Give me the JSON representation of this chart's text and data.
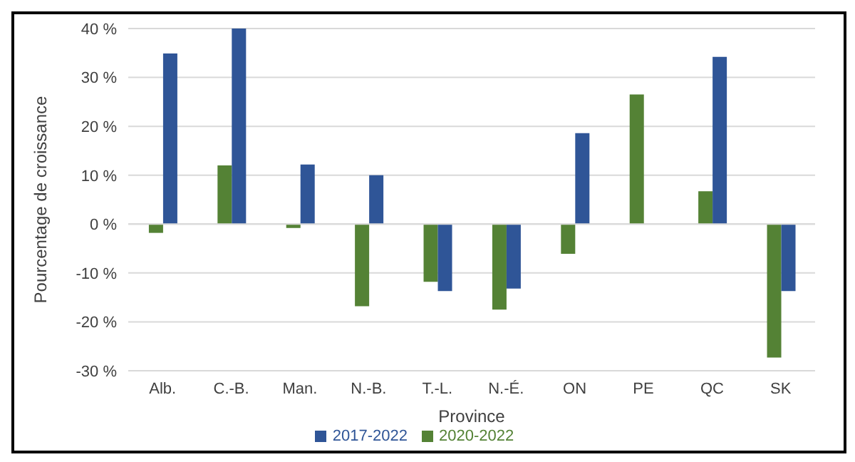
{
  "chart_data": {
    "type": "bar",
    "xlabel": "Province",
    "ylabel": "Pourcentage de croissance",
    "categories": [
      "Alb.",
      "C.-B.",
      "Man.",
      "N.-B.",
      "T.-L.",
      "N.-É.",
      "ON",
      "PE",
      "QC",
      "SK"
    ],
    "series": [
      {
        "name": "2020-2022",
        "color": "#548235",
        "values": [
          -1.8,
          12.0,
          -0.8,
          -16.8,
          -11.8,
          -17.5,
          -6.1,
          26.5,
          6.7,
          -27.3
        ]
      },
      {
        "name": "2017-2022",
        "color": "#2f5597",
        "values": [
          34.9,
          40.0,
          12.2,
          10.0,
          -13.7,
          -13.2,
          18.6,
          null,
          34.2,
          -13.7
        ]
      }
    ],
    "ylim": [
      -30,
      40
    ],
    "yticks": [
      {
        "value": -30,
        "label": "-30 %"
      },
      {
        "value": -20,
        "label": "-20 %"
      },
      {
        "value": -10,
        "label": "-10 %"
      },
      {
        "value": 0,
        "label": "0 %"
      },
      {
        "value": 10,
        "label": "10 %"
      },
      {
        "value": 20,
        "label": "20 %"
      },
      {
        "value": 30,
        "label": "30 %"
      },
      {
        "value": 40,
        "label": "40 %"
      }
    ],
    "grid": "y",
    "legend": "bottom"
  }
}
